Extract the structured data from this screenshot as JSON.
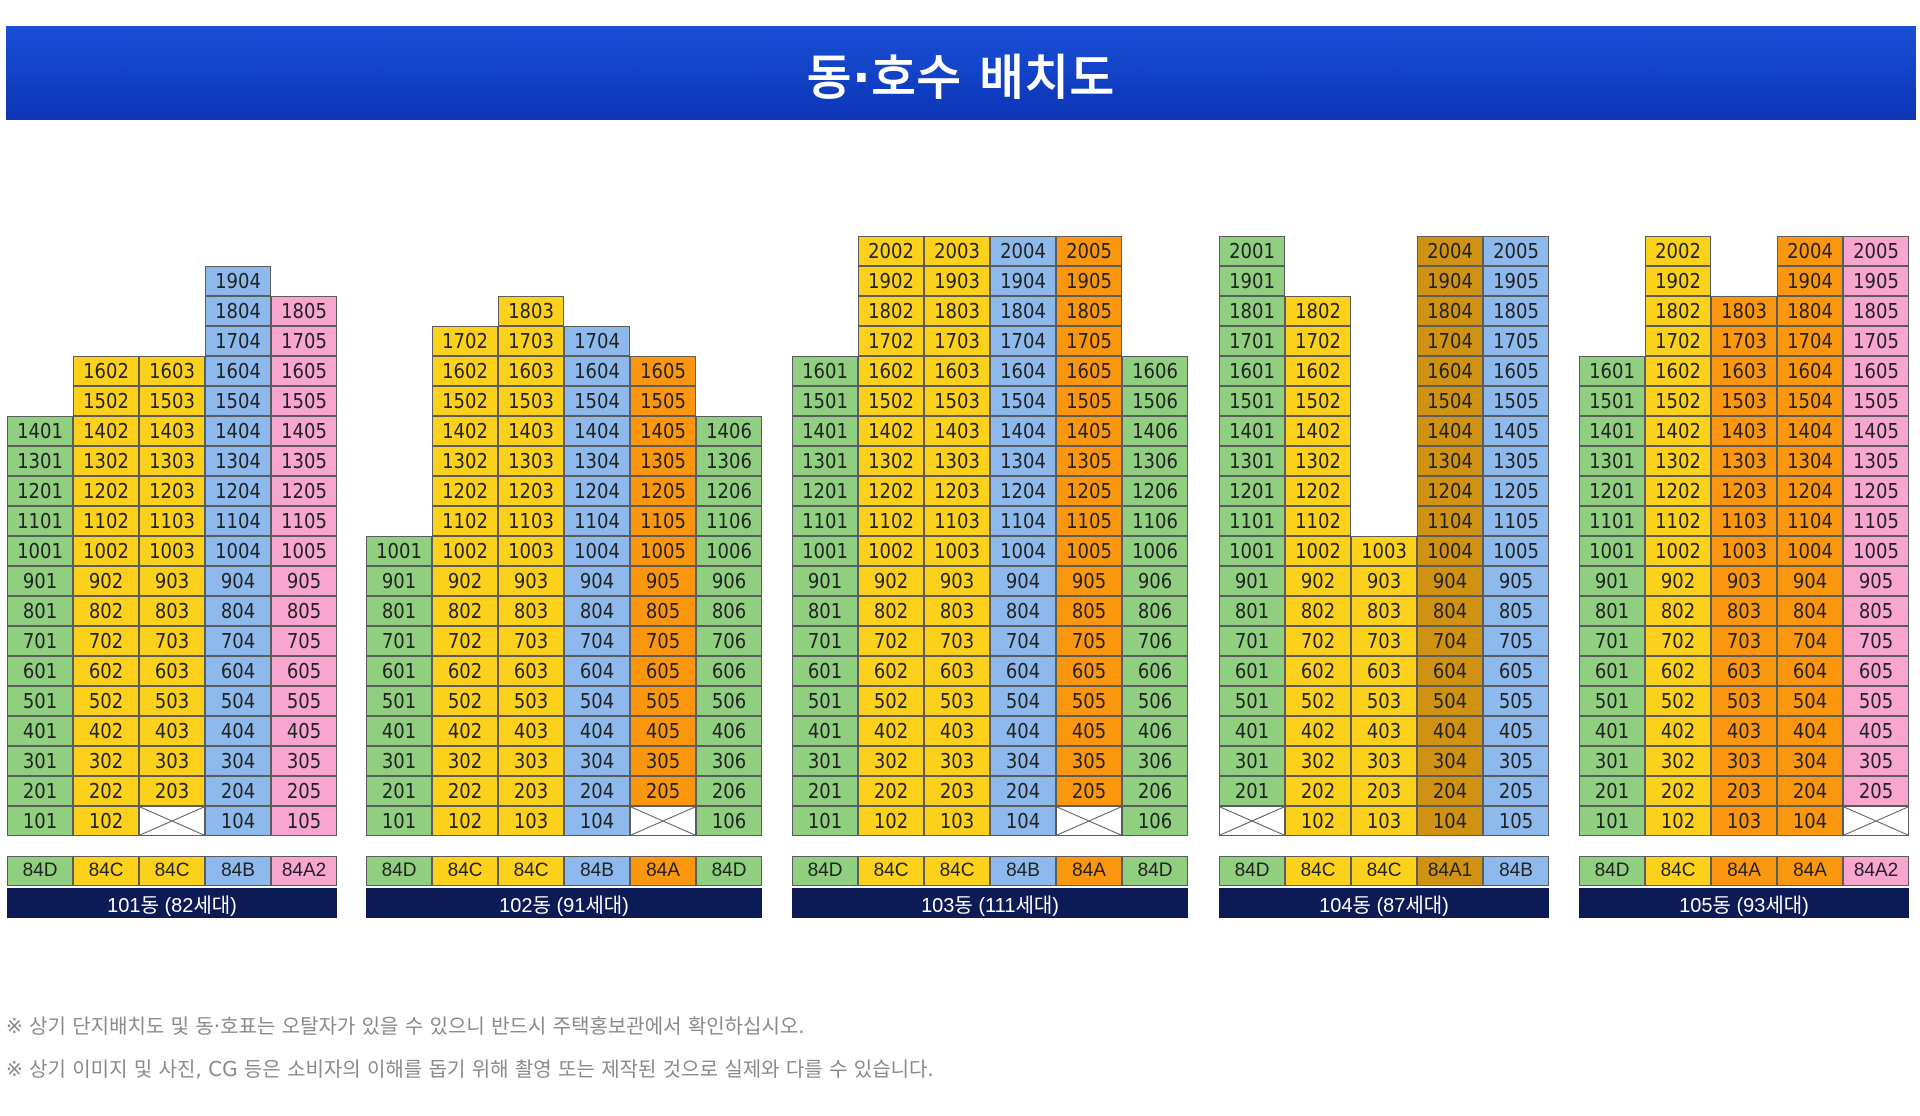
{
  "header": {
    "title": "동·호수 배치도"
  },
  "colors": {
    "84D": "#8fcf7f",
    "84C": "#fbd11b",
    "84B": "#8db9ec",
    "84A": "#fb960f",
    "84A1": "#cf9212",
    "84A2": "#f8a6cf",
    "label_bg": "#0c1a55",
    "header_bg": "#0b35b6"
  },
  "buildings": [
    {
      "label": "101동 (82세대)",
      "types": [
        "84D",
        "84C",
        "84C",
        "84B",
        "84A2"
      ],
      "columns": [
        [
          1401,
          1301,
          1201,
          1101,
          1001,
          901,
          801,
          701,
          601,
          501,
          401,
          301,
          201,
          101
        ],
        [
          1602,
          1502,
          1402,
          1302,
          1202,
          1102,
          1002,
          902,
          802,
          702,
          602,
          502,
          402,
          302,
          202,
          102
        ],
        [
          1603,
          1503,
          1403,
          1303,
          1203,
          1103,
          1003,
          903,
          803,
          703,
          603,
          503,
          403,
          303,
          203,
          null
        ],
        [
          1904,
          1804,
          1704,
          1604,
          1504,
          1404,
          1304,
          1204,
          1104,
          1004,
          904,
          804,
          704,
          604,
          504,
          404,
          304,
          204,
          104
        ],
        [
          1805,
          1705,
          1605,
          1505,
          1405,
          1305,
          1205,
          1105,
          1005,
          905,
          805,
          705,
          605,
          505,
          405,
          305,
          205,
          105
        ]
      ]
    },
    {
      "label": "102동 (91세대)",
      "types": [
        "84D",
        "84C",
        "84C",
        "84B",
        "84A",
        "84D"
      ],
      "columns": [
        [
          1001,
          901,
          801,
          701,
          601,
          501,
          401,
          301,
          201,
          101
        ],
        [
          1702,
          1602,
          1502,
          1402,
          1302,
          1202,
          1102,
          1002,
          902,
          802,
          702,
          602,
          502,
          402,
          302,
          202,
          102
        ],
        [
          1803,
          1703,
          1603,
          1503,
          1403,
          1303,
          1203,
          1103,
          1003,
          903,
          803,
          703,
          603,
          503,
          403,
          303,
          203,
          103
        ],
        [
          1704,
          1604,
          1504,
          1404,
          1304,
          1204,
          1104,
          1004,
          904,
          804,
          704,
          604,
          504,
          404,
          304,
          204,
          104
        ],
        [
          1605,
          1505,
          1405,
          1305,
          1205,
          1105,
          1005,
          905,
          805,
          705,
          605,
          505,
          405,
          305,
          205,
          null
        ],
        [
          1406,
          1306,
          1206,
          1106,
          1006,
          906,
          806,
          706,
          606,
          506,
          406,
          306,
          206,
          106
        ]
      ]
    },
    {
      "label": "103동 (111세대)",
      "types": [
        "84D",
        "84C",
        "84C",
        "84B",
        "84A",
        "84D"
      ],
      "columns": [
        [
          1601,
          1501,
          1401,
          1301,
          1201,
          1101,
          1001,
          901,
          801,
          701,
          601,
          501,
          401,
          301,
          201,
          101
        ],
        [
          2002,
          1902,
          1802,
          1702,
          1602,
          1502,
          1402,
          1302,
          1202,
          1102,
          1002,
          902,
          802,
          702,
          602,
          502,
          402,
          302,
          202,
          102
        ],
        [
          2003,
          1903,
          1803,
          1703,
          1603,
          1503,
          1403,
          1303,
          1203,
          1103,
          1003,
          903,
          803,
          703,
          603,
          503,
          403,
          303,
          203,
          103
        ],
        [
          2004,
          1904,
          1804,
          1704,
          1604,
          1504,
          1404,
          1304,
          1204,
          1104,
          1004,
          904,
          804,
          704,
          604,
          504,
          404,
          304,
          204,
          104
        ],
        [
          2005,
          1905,
          1805,
          1705,
          1605,
          1505,
          1405,
          1305,
          1205,
          1105,
          1005,
          905,
          805,
          705,
          605,
          505,
          405,
          305,
          205,
          null
        ],
        [
          1606,
          1506,
          1406,
          1306,
          1206,
          1106,
          1006,
          906,
          806,
          706,
          606,
          506,
          406,
          306,
          206,
          106
        ]
      ]
    },
    {
      "label": "104동 (87세대)",
      "types": [
        "84D",
        "84C",
        "84C",
        "84A1",
        "84B"
      ],
      "columns": [
        [
          2001,
          1901,
          1801,
          1701,
          1601,
          1501,
          1401,
          1301,
          1201,
          1101,
          1001,
          901,
          801,
          701,
          601,
          501,
          401,
          301,
          201,
          null
        ],
        [
          1802,
          1702,
          1602,
          1502,
          1402,
          1302,
          1202,
          1102,
          1002,
          902,
          802,
          702,
          602,
          502,
          402,
          302,
          202,
          102
        ],
        [
          1003,
          903,
          803,
          703,
          603,
          503,
          403,
          303,
          203,
          103
        ],
        [
          2004,
          1904,
          1804,
          1704,
          1604,
          1504,
          1404,
          1304,
          1204,
          1104,
          1004,
          904,
          804,
          704,
          604,
          504,
          404,
          304,
          204,
          104
        ],
        [
          2005,
          1905,
          1805,
          1705,
          1605,
          1505,
          1405,
          1305,
          1205,
          1105,
          1005,
          905,
          805,
          705,
          605,
          505,
          405,
          305,
          205,
          105
        ]
      ]
    },
    {
      "label": "105동 (93세대)",
      "types": [
        "84D",
        "84C",
        "84A",
        "84A",
        "84A2"
      ],
      "columns": [
        [
          1601,
          1501,
          1401,
          1301,
          1201,
          1101,
          1001,
          901,
          801,
          701,
          601,
          501,
          401,
          301,
          201,
          101
        ],
        [
          2002,
          1902,
          1802,
          1702,
          1602,
          1502,
          1402,
          1302,
          1202,
          1102,
          1002,
          902,
          802,
          702,
          602,
          502,
          402,
          302,
          202,
          102
        ],
        [
          1803,
          1703,
          1603,
          1503,
          1403,
          1303,
          1203,
          1103,
          1003,
          903,
          803,
          703,
          603,
          503,
          403,
          303,
          203,
          103
        ],
        [
          2004,
          1904,
          1804,
          1704,
          1604,
          1504,
          1404,
          1304,
          1204,
          1104,
          1004,
          904,
          804,
          704,
          604,
          504,
          404,
          304,
          204,
          104
        ],
        [
          2005,
          1905,
          1805,
          1705,
          1605,
          1505,
          1405,
          1305,
          1205,
          1105,
          1005,
          905,
          805,
          705,
          605,
          505,
          405,
          305,
          205,
          null
        ]
      ]
    }
  ],
  "notes": [
    "※ 상기 단지배치도 및 동·호표는 오탈자가 있을 수 있으니 반드시 주택홍보관에서 확인하십시오.",
    "※ 상기 이미지 및 사진, CG 등은 소비자의 이해를 돕기 위해 촬영 또는 제작된 것으로 실제와 다를 수 있습니다."
  ]
}
